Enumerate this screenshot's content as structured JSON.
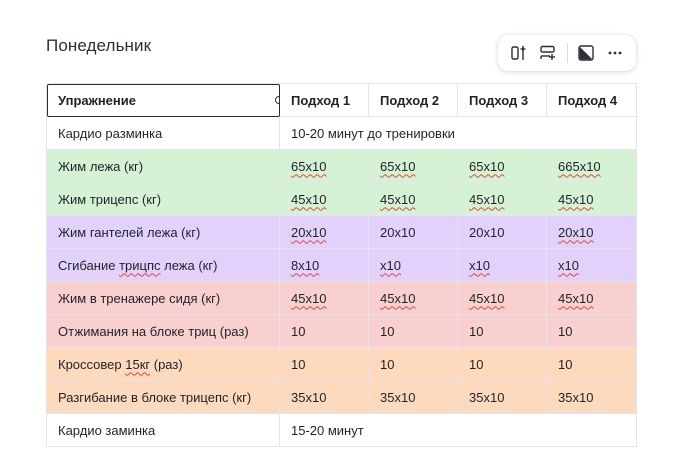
{
  "page": {
    "title": "Понедельник"
  },
  "toolbar": {
    "buttons": [
      {
        "icon": "insert-column-icon"
      },
      {
        "icon": "insert-row-icon"
      },
      {
        "icon": "cell-color-icon"
      },
      {
        "icon": "more-options-icon"
      }
    ]
  },
  "table": {
    "headers": [
      "Упражнение",
      "Подход 1",
      "Подход 2",
      "Подход 3",
      "Подход 4"
    ],
    "rows": [
      {
        "color": "#ffffff",
        "exercise": "Кардио разминка",
        "note": "10-20 минут до тренировки"
      },
      {
        "color": "#d5f2d5",
        "exercise": "Жим лежа (кг)",
        "sets": [
          "65x10",
          "65x10",
          "65x10",
          "665x10"
        ]
      },
      {
        "color": "#d5f2d5",
        "exercise": "Жим трицепс (кг)",
        "sets": [
          "45x10",
          "45x10",
          "45x10",
          "45x10"
        ]
      },
      {
        "color": "#e1d1fb",
        "exercise": "Жим гантелей лежа (кг)",
        "sets": [
          "20x10",
          "20x10",
          "20x10",
          "20x10"
        ]
      },
      {
        "color": "#e1d1fb",
        "exercise_parts": [
          "Сгибание ",
          "трицпс",
          " лежа (кг)"
        ],
        "sets": [
          "8x10",
          "x10",
          "x10",
          "x10"
        ]
      },
      {
        "color": "#f9d0d0",
        "exercise": "Жим в тренажере сидя (кг)",
        "sets": [
          "45x10",
          "45x10",
          "45x10",
          "45x10"
        ]
      },
      {
        "color": "#f9d0d0",
        "exercise": "Отжимания на блоке триц (раз)",
        "sets": [
          "10",
          "10",
          "10",
          "10"
        ]
      },
      {
        "color": "#fdd9bd",
        "exercise_parts": [
          "Кроссовер ",
          "15кг",
          " (раз)"
        ],
        "sets": [
          "10",
          "10",
          "10",
          "10"
        ]
      },
      {
        "color": "#fdd9bd",
        "exercise": "Разгибание в блоке трицепс (кг)",
        "sets": [
          "35x10",
          "35x10",
          "35x10",
          "35x10"
        ]
      },
      {
        "color": "#ffffff",
        "exercise": "Кардио заминка",
        "note": "15-20 минут"
      }
    ]
  }
}
